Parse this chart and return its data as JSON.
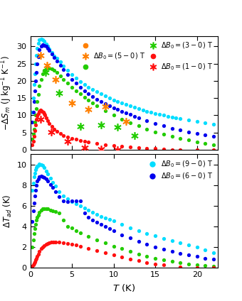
{
  "top_panel": {
    "ylabel": "$-\\Delta S_m$ (J kg$^{-1}$ K$^{-1}$)",
    "ylim": [
      0,
      33
    ],
    "yticks": [
      0,
      5,
      10,
      15,
      20,
      25,
      30
    ],
    "xlim": [
      0,
      22.5
    ],
    "legend_entries": [
      {
        "label": "$\\Delta B_0 = (5-0)$ T",
        "dot_color": "#FF8000",
        "ast_color": "#FF8000"
      },
      {
        "label": "$\\Delta B_0 = (3-0)$ T",
        "dot_color": "#22CC00",
        "ast_color": "#22CC00"
      },
      {
        "label": "$\\Delta B_0 = (1-0)$ T",
        "dot_color": "#FF1010",
        "ast_color": "#FF1010"
      }
    ],
    "dot_curves": [
      {
        "color": "#00DDFF",
        "T": [
          0.25,
          0.35,
          0.45,
          0.55,
          0.65,
          0.75,
          0.85,
          0.95,
          1.1,
          1.3,
          1.5,
          1.7,
          1.9,
          2.1,
          2.3,
          2.6,
          2.9,
          3.2,
          3.6,
          4.0,
          4.5,
          5.0,
          5.5,
          6.0,
          6.5,
          7.0,
          7.5,
          8.0,
          8.5,
          9.0,
          9.5,
          10.0,
          10.5,
          11.0,
          11.5,
          12.0,
          12.5,
          13.0,
          13.5,
          14.0,
          14.5,
          15.0,
          15.5,
          16.0,
          16.5,
          17.0,
          17.5,
          18.0,
          19.0,
          20.0,
          21.0,
          22.0
        ],
        "S": [
          11,
          15,
          19,
          22,
          25,
          27.5,
          29.5,
          31.0,
          32.0,
          32.2,
          32.0,
          31.5,
          30.8,
          30.0,
          29.3,
          28.3,
          27.3,
          26.5,
          25.5,
          24.3,
          23.0,
          21.8,
          20.8,
          19.8,
          19.0,
          18.2,
          17.5,
          16.8,
          16.2,
          15.6,
          15.0,
          14.5,
          14.0,
          13.5,
          13.1,
          12.7,
          12.3,
          11.9,
          11.6,
          11.2,
          10.9,
          10.6,
          10.3,
          10.0,
          9.7,
          9.5,
          9.2,
          9.0,
          8.6,
          8.2,
          7.8,
          7.4
        ]
      },
      {
        "color": "#0000EE",
        "T": [
          0.25,
          0.35,
          0.45,
          0.55,
          0.65,
          0.75,
          0.85,
          0.95,
          1.1,
          1.3,
          1.5,
          1.7,
          1.9,
          2.1,
          2.3,
          2.6,
          2.9,
          3.2,
          3.6,
          4.0,
          4.5,
          5.0,
          5.5,
          6.0,
          6.5,
          7.0,
          7.5,
          8.0,
          8.5,
          9.0,
          9.5,
          10.0,
          10.5,
          11.0,
          11.5,
          12.0,
          12.5,
          13.0,
          14.0,
          15.0,
          16.0,
          17.0,
          18.0,
          19.0,
          20.0,
          21.0,
          22.0
        ],
        "S": [
          8,
          11,
          14,
          17,
          20,
          22.5,
          25.0,
          27.0,
          29.0,
          30.0,
          30.5,
          30.3,
          30.0,
          29.5,
          28.8,
          27.8,
          26.8,
          25.8,
          24.5,
          23.2,
          21.8,
          20.5,
          19.3,
          18.2,
          17.2,
          16.3,
          15.5,
          14.7,
          14.0,
          13.3,
          12.7,
          12.2,
          11.7,
          11.2,
          10.7,
          10.2,
          9.7,
          9.2,
          8.4,
          7.6,
          6.9,
          6.2,
          5.7,
          5.2,
          4.7,
          4.3,
          4.0
        ]
      },
      {
        "color": "#22CC00",
        "T": [
          0.25,
          0.35,
          0.45,
          0.55,
          0.65,
          0.75,
          0.85,
          0.95,
          1.1,
          1.3,
          1.5,
          1.7,
          1.9,
          2.1,
          2.3,
          2.6,
          2.9,
          3.2,
          3.6,
          4.0,
          4.5,
          5.0,
          5.5,
          6.0,
          6.5,
          7.0,
          7.5,
          8.0,
          9.0,
          10.0,
          11.0,
          12.0,
          13.0,
          14.0,
          15.0,
          16.0,
          17.0,
          18.0,
          19.0,
          20.0,
          21.0,
          22.0
        ],
        "S": [
          3.0,
          4.5,
          6.0,
          8.0,
          10.0,
          12.0,
          14.0,
          16.0,
          18.5,
          20.5,
          22.0,
          23.0,
          23.5,
          23.8,
          23.7,
          23.5,
          23.0,
          22.5,
          21.5,
          20.5,
          19.3,
          18.2,
          17.2,
          16.2,
          15.3,
          14.4,
          13.6,
          12.8,
          11.4,
          10.1,
          8.9,
          7.8,
          6.9,
          6.0,
          5.2,
          4.5,
          3.9,
          3.3,
          2.8,
          2.3,
          1.9,
          1.5
        ]
      },
      {
        "color": "#FF1010",
        "T": [
          0.25,
          0.35,
          0.45,
          0.55,
          0.65,
          0.75,
          0.85,
          0.95,
          1.05,
          1.15,
          1.25,
          1.35,
          1.45,
          1.55,
          1.65,
          1.75,
          1.9,
          2.1,
          2.3,
          2.6,
          2.9,
          3.2,
          3.6,
          4.0,
          4.5,
          5.0,
          5.5,
          6.0,
          6.5,
          7.0,
          8.0,
          9.0,
          10.0,
          11.0,
          12.0,
          13.0,
          14.0,
          15.0,
          16.0,
          17.0,
          18.0,
          20.0,
          22.0
        ],
        "S": [
          1.5,
          2.5,
          4.0,
          5.5,
          7.2,
          8.8,
          9.8,
          10.6,
          11.1,
          11.4,
          11.5,
          11.4,
          11.2,
          10.9,
          10.5,
          10.0,
          9.3,
          8.5,
          7.7,
          6.7,
          5.9,
          5.4,
          4.7,
          4.2,
          3.7,
          3.3,
          3.0,
          2.7,
          2.4,
          2.2,
          1.8,
          1.5,
          1.2,
          1.0,
          0.8,
          0.6,
          0.4,
          0.3,
          0.15,
          0.08,
          0.03,
          0.0,
          0.0
        ]
      }
    ],
    "asterisk_curves": [
      {
        "color": "#FF8000",
        "T": [
          1.2,
          2.0,
          3.0,
          5.0,
          7.0,
          9.0,
          11.5
        ],
        "S": [
          27.5,
          24.5,
          20.5,
          13.5,
          11.8,
          12.5,
          8.2
        ]
      },
      {
        "color": "#22CC00",
        "T": [
          1.8,
          3.5,
          6.0,
          8.5,
          10.5,
          12.5
        ],
        "S": [
          22.5,
          16.5,
          6.8,
          7.2,
          6.5,
          4.2
        ]
      },
      {
        "color": "#FF1010",
        "T": [
          1.2,
          2.5,
          4.5,
          6.5,
          8.5,
          10.5
        ],
        "S": [
          8.8,
          5.2,
          2.5,
          0.7,
          0.15,
          0.03
        ]
      }
    ]
  },
  "bottom_panel": {
    "ylabel": "$\\Delta T_{ad}$ (K)",
    "xlabel": "$T$ (K)",
    "ylim": [
      0,
      11
    ],
    "yticks": [
      0,
      2,
      4,
      6,
      8,
      10
    ],
    "xlim": [
      0,
      22.5
    ],
    "xticks": [
      0,
      5,
      10,
      15,
      20
    ],
    "legend_entries": [
      {
        "label": "$\\Delta B_0 = (9-0)$ T",
        "color": "#00DDFF"
      },
      {
        "label": "$\\Delta B_0 = (6-0)$ T",
        "color": "#0000EE"
      }
    ],
    "dot_curves": [
      {
        "color": "#00DDFF",
        "T": [
          0.25,
          0.35,
          0.45,
          0.55,
          0.65,
          0.75,
          0.85,
          0.95,
          1.1,
          1.3,
          1.5,
          1.7,
          1.9,
          2.1,
          2.4,
          2.7,
          3.0,
          3.5,
          4.0,
          4.5,
          5.0,
          5.5,
          6.0,
          6.5,
          7.0,
          7.5,
          8.0,
          8.5,
          9.0,
          9.5,
          10.0,
          11.0,
          12.0,
          13.0,
          14.0,
          15.0,
          16.0,
          17.0,
          18.0,
          19.0,
          20.0,
          21.0,
          22.0
        ],
        "S": [
          7.5,
          8.2,
          8.8,
          9.2,
          9.5,
          9.7,
          9.85,
          9.95,
          10.05,
          10.0,
          9.9,
          9.7,
          9.4,
          9.1,
          8.7,
          8.3,
          7.9,
          7.4,
          7.0,
          6.7,
          6.4,
          6.2,
          6.0,
          5.8,
          5.6,
          5.4,
          5.2,
          5.0,
          4.85,
          4.7,
          4.55,
          4.2,
          3.9,
          3.6,
          3.35,
          3.1,
          2.85,
          2.65,
          2.45,
          2.2,
          2.0,
          1.75,
          1.5
        ]
      },
      {
        "color": "#0000EE",
        "T": [
          0.25,
          0.35,
          0.45,
          0.55,
          0.65,
          0.75,
          0.85,
          0.95,
          1.1,
          1.3,
          1.5,
          1.7,
          1.9,
          2.1,
          2.4,
          2.7,
          3.0,
          3.5,
          4.0,
          4.5,
          5.0,
          5.5,
          6.0,
          6.5,
          7.0,
          7.5,
          8.0,
          8.5,
          9.0,
          9.5,
          10.0,
          11.0,
          12.0,
          13.0,
          14.0,
          15.0,
          16.0,
          17.0,
          18.0,
          19.0,
          20.0,
          21.0,
          22.0
        ],
        "S": [
          4.5,
          5.5,
          6.3,
          7.0,
          7.5,
          8.0,
          8.4,
          8.65,
          8.85,
          8.9,
          8.85,
          8.75,
          8.6,
          8.4,
          8.1,
          7.8,
          7.4,
          6.9,
          6.5,
          6.4,
          6.5,
          6.5,
          6.5,
          5.3,
          4.9,
          4.6,
          4.4,
          4.2,
          4.0,
          3.8,
          3.6,
          3.2,
          2.9,
          2.6,
          2.3,
          2.0,
          1.8,
          1.6,
          1.4,
          1.25,
          1.1,
          0.95,
          0.85
        ]
      },
      {
        "color": "#22CC00",
        "T": [
          0.25,
          0.35,
          0.45,
          0.55,
          0.65,
          0.75,
          0.85,
          0.95,
          1.1,
          1.3,
          1.5,
          1.7,
          1.9,
          2.1,
          2.4,
          2.7,
          3.0,
          3.5,
          4.0,
          4.5,
          5.0,
          5.5,
          6.0,
          7.0,
          8.0,
          9.0,
          10.0,
          11.0,
          12.0,
          13.0,
          14.0,
          15.0,
          16.0,
          17.0,
          18.0,
          19.0,
          20.0,
          21.0,
          22.0
        ],
        "S": [
          2.0,
          2.7,
          3.3,
          3.8,
          4.2,
          4.6,
          4.9,
          5.1,
          5.4,
          5.6,
          5.7,
          5.75,
          5.75,
          5.7,
          5.6,
          5.5,
          5.45,
          5.35,
          4.6,
          4.0,
          3.85,
          3.6,
          3.4,
          3.05,
          2.7,
          2.4,
          2.1,
          1.85,
          1.6,
          1.35,
          1.15,
          0.95,
          0.8,
          0.65,
          0.5,
          0.38,
          0.28,
          0.2,
          0.13
        ]
      },
      {
        "color": "#FF1010",
        "T": [
          0.25,
          0.35,
          0.45,
          0.55,
          0.65,
          0.75,
          0.85,
          0.95,
          1.1,
          1.3,
          1.5,
          1.7,
          1.9,
          2.1,
          2.3,
          2.5,
          2.8,
          3.0,
          3.5,
          4.0,
          4.5,
          5.0,
          5.5,
          6.0,
          7.0,
          8.0,
          9.0,
          10.0,
          11.0,
          12.0,
          13.0,
          14.0,
          15.0,
          16.0,
          18.0,
          20.0,
          22.0
        ],
        "S": [
          0.15,
          0.28,
          0.42,
          0.58,
          0.75,
          0.95,
          1.15,
          1.35,
          1.62,
          1.88,
          2.05,
          2.18,
          2.27,
          2.35,
          2.42,
          2.48,
          2.52,
          2.53,
          2.5,
          2.45,
          2.38,
          2.3,
          2.2,
          2.1,
          1.88,
          1.65,
          1.44,
          1.23,
          1.03,
          0.85,
          0.68,
          0.53,
          0.4,
          0.28,
          0.12,
          0.05,
          0.01
        ]
      }
    ]
  }
}
